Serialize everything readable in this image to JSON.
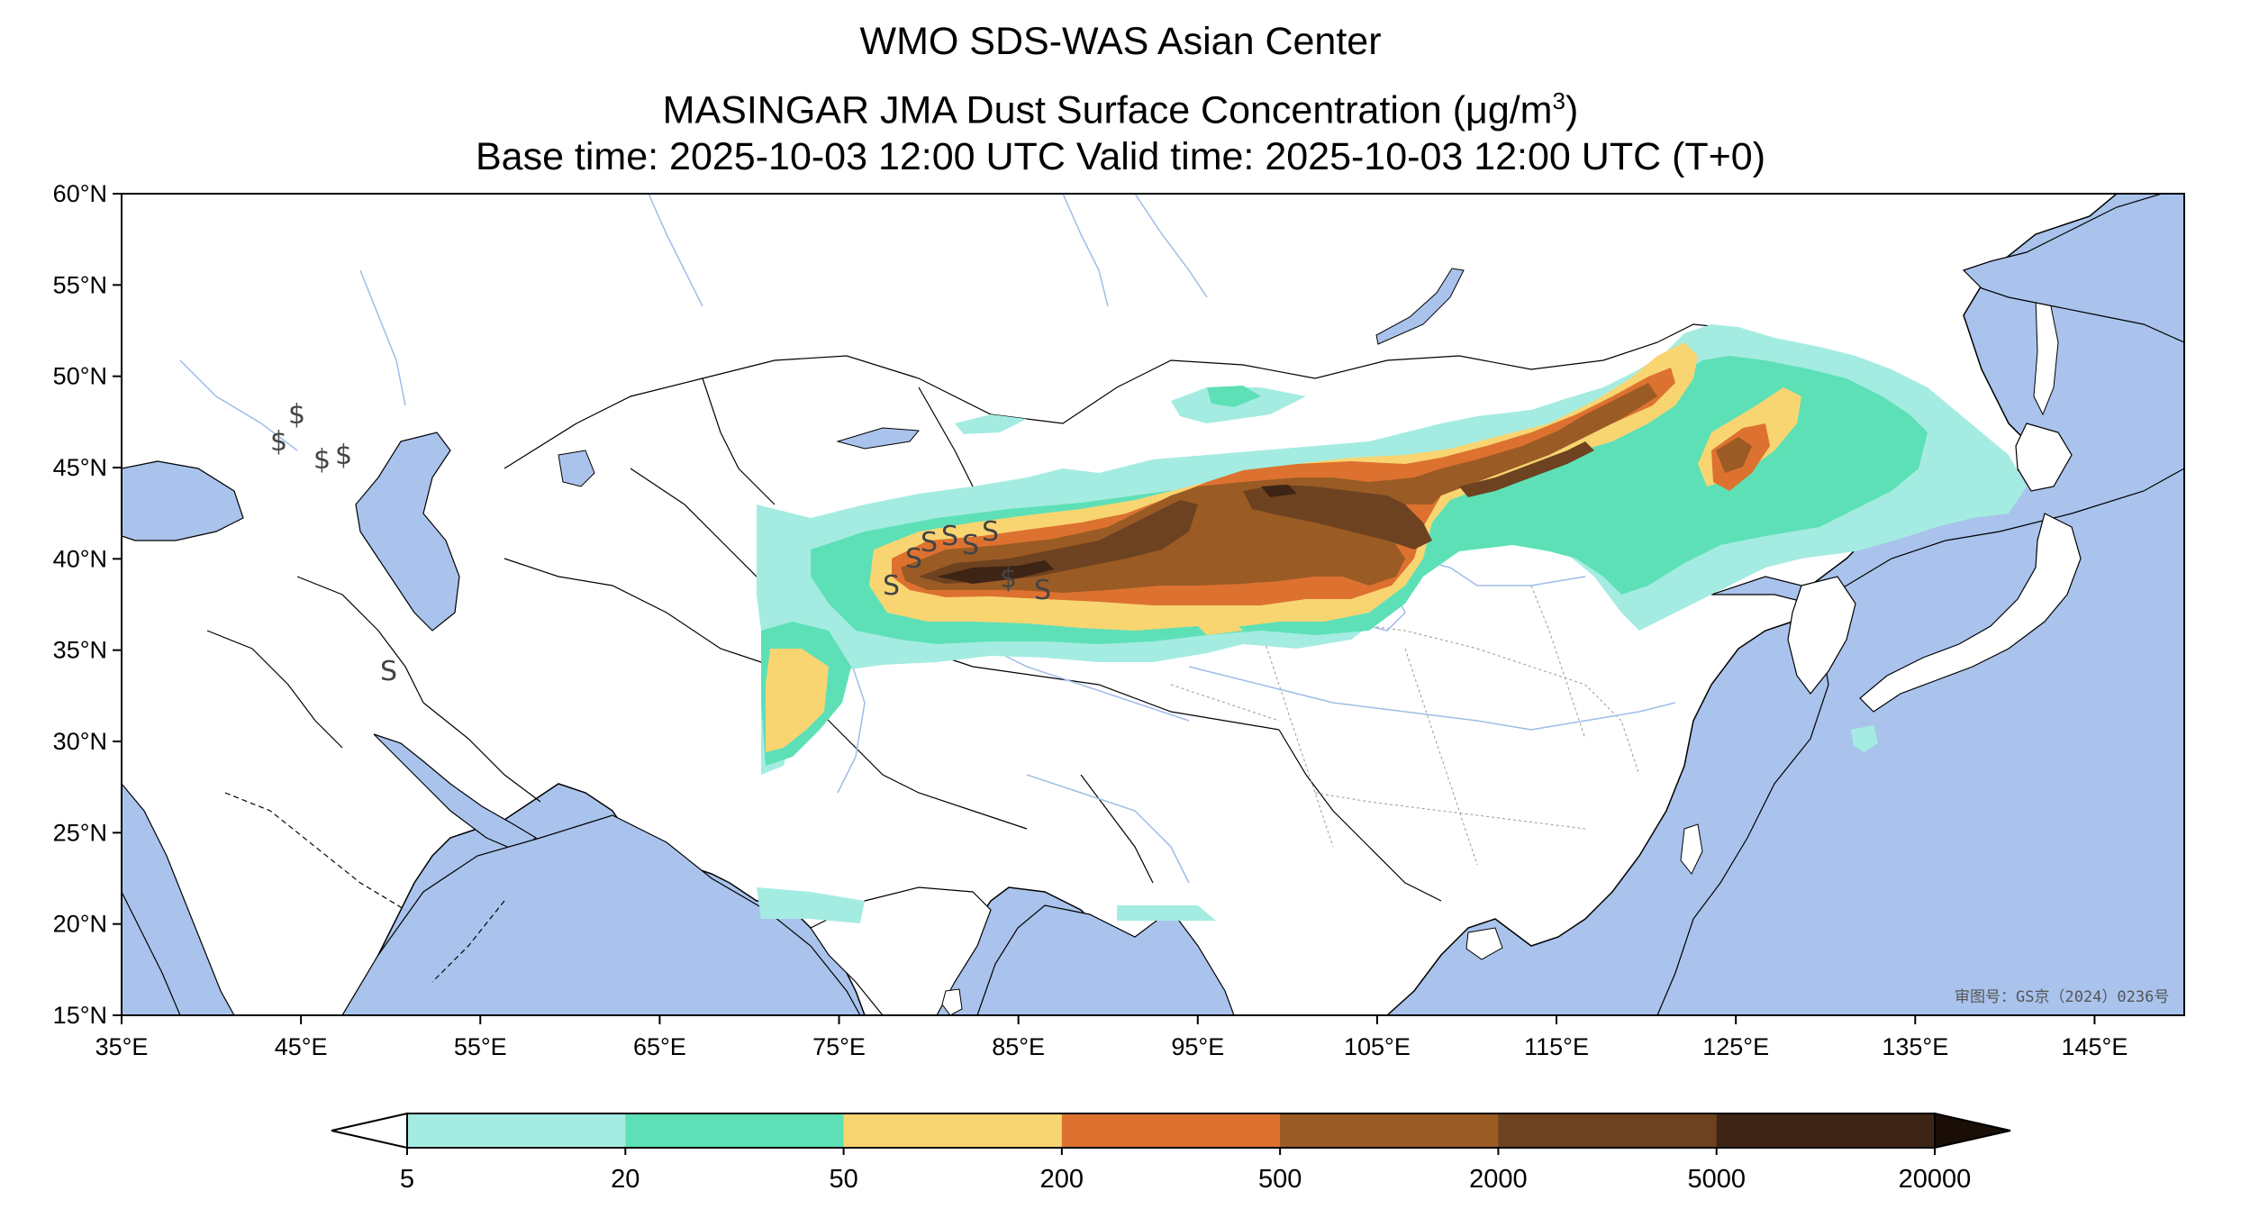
{
  "title": {
    "line1": "WMO SDS-WAS Asian Center",
    "line2_prefix": "MASINGAR JMA Dust Surface Concentration (",
    "line2_unit": "μg/m",
    "line2_exp": "3",
    "line2_suffix": ")",
    "line3": "Base time: 2025-10-03 12:00 UTC Valid time: 2025-10-03 12:00 UTC (T+0)"
  },
  "map": {
    "lon_range": [
      35,
      150
    ],
    "lat_range": [
      15,
      60
    ],
    "lat_ticks": [
      "60°N",
      "55°N",
      "50°N",
      "45°N",
      "40°N",
      "35°N",
      "30°N",
      "25°N",
      "20°N",
      "15°N"
    ],
    "lon_ticks": [
      "35°E",
      "45°E",
      "55°E",
      "65°E",
      "75°E",
      "85°E",
      "95°E",
      "105°E",
      "115°E",
      "125°E",
      "135°E",
      "145°E"
    ],
    "approval_text": "审图号：GS京（2024）0236号",
    "ocean_color": "#a9c3ec",
    "land_color": "#ffffff"
  },
  "colorbar": {
    "boundaries": [
      "5",
      "20",
      "50",
      "200",
      "500",
      "2000",
      "5000",
      "20000"
    ],
    "colors": [
      "#a4ece2",
      "#5ee0b7",
      "#f9d572",
      "#dd7230",
      "#9b5b24",
      "#6d4220",
      "#3d2415"
    ],
    "under_color": "#ffffff",
    "over_color": "#1a0e06"
  }
}
